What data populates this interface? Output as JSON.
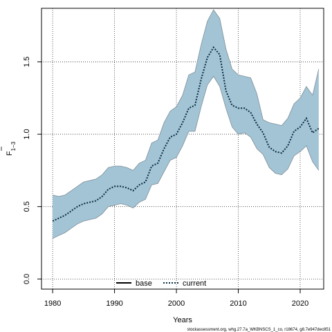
{
  "chart_data": {
    "type": "line",
    "title": "",
    "xlabel": "Years",
    "ylabel_main": "F",
    "ylabel_sub": "1−3",
    "xlim": [
      1978.2,
      2023.8
    ],
    "ylim": [
      -0.07,
      1.87
    ],
    "x_ticks": [
      1980,
      1990,
      2000,
      2010,
      2020
    ],
    "y_ticks": [
      0.0,
      0.5,
      1.0,
      1.5
    ],
    "y_tick_labels": [
      "0.0",
      "0.5",
      "1.0",
      "1.5"
    ],
    "grid": true,
    "legend_position": "bottom-center",
    "colors": {
      "band": "#a3c4d5",
      "band_edge": "#7d8e98",
      "line": "#0a2a40",
      "grid": "#333333"
    },
    "series": [
      {
        "name": "current",
        "x": [
          1980,
          1981,
          1982,
          1983,
          1984,
          1985,
          1986,
          1987,
          1988,
          1989,
          1990,
          1991,
          1992,
          1993,
          1994,
          1995,
          1996,
          1997,
          1998,
          1999,
          2000,
          2001,
          2002,
          2003,
          2004,
          2005,
          2006,
          2007,
          2008,
          2009,
          2010,
          2011,
          2012,
          2013,
          2014,
          2015,
          2016,
          2017,
          2018,
          2019,
          2020,
          2021,
          2022,
          2023
        ],
        "y": [
          0.4,
          0.42,
          0.44,
          0.47,
          0.5,
          0.52,
          0.53,
          0.54,
          0.57,
          0.62,
          0.64,
          0.64,
          0.63,
          0.61,
          0.65,
          0.67,
          0.78,
          0.8,
          0.9,
          0.98,
          1.0,
          1.08,
          1.18,
          1.2,
          1.38,
          1.53,
          1.6,
          1.55,
          1.3,
          1.2,
          1.18,
          1.18,
          1.15,
          1.07,
          1.01,
          0.91,
          0.88,
          0.87,
          0.92,
          1.02,
          1.05,
          1.11,
          1.01,
          1.04
        ],
        "lower": [
          0.28,
          0.3,
          0.32,
          0.35,
          0.38,
          0.4,
          0.41,
          0.42,
          0.45,
          0.5,
          0.51,
          0.52,
          0.51,
          0.49,
          0.53,
          0.55,
          0.65,
          0.66,
          0.74,
          0.82,
          0.84,
          0.92,
          1.02,
          1.02,
          1.19,
          1.34,
          1.4,
          1.33,
          1.18,
          1.05,
          1.0,
          1.01,
          0.98,
          0.9,
          0.86,
          0.77,
          0.73,
          0.72,
          0.76,
          0.85,
          0.88,
          0.92,
          0.81,
          0.75
        ],
        "upper": [
          0.58,
          0.57,
          0.58,
          0.61,
          0.64,
          0.67,
          0.68,
          0.69,
          0.72,
          0.77,
          0.78,
          0.78,
          0.77,
          0.75,
          0.8,
          0.82,
          0.94,
          0.96,
          1.08,
          1.16,
          1.19,
          1.27,
          1.41,
          1.43,
          1.62,
          1.78,
          1.86,
          1.8,
          1.59,
          1.45,
          1.41,
          1.4,
          1.39,
          1.28,
          1.1,
          1.08,
          1.07,
          1.06,
          1.11,
          1.21,
          1.25,
          1.33,
          1.27,
          1.45
        ]
      }
    ],
    "legend": [
      {
        "label": "base",
        "style": "solid"
      },
      {
        "label": "current",
        "style": "dotted"
      }
    ]
  },
  "footnote": "stockassessment.org, whg.27.7a_WKBNSCS_1_co, r18674, g8.7e947dec851"
}
